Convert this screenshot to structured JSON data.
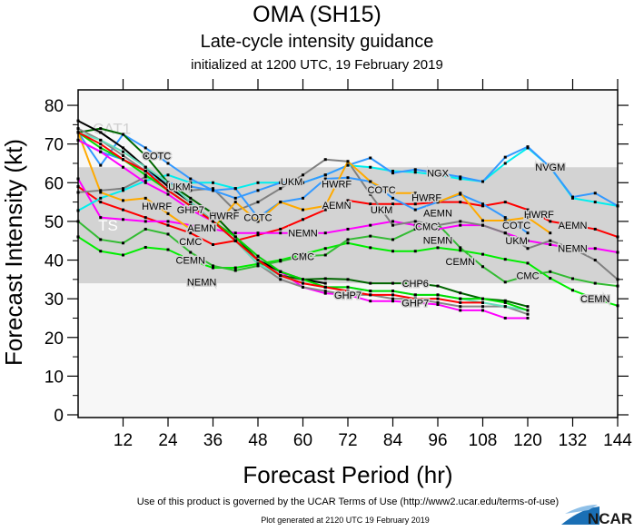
{
  "chart_data": {
    "type": "line",
    "title": "OMA (SH15)",
    "subtitle": "Late-cycle intensity guidance",
    "subtitle2": "initialized at 1200 UTC, 19 February 2019",
    "xlabel": "Forecast Period (hr)",
    "ylabel": "Forecast Intensity (kt)",
    "xlim": [
      0,
      144
    ],
    "ylim": [
      0,
      84
    ],
    "x_ticks": [
      "12",
      "24",
      "36",
      "48",
      "60",
      "72",
      "84",
      "96",
      "108",
      "120",
      "132",
      "144"
    ],
    "y_ticks": [
      "0",
      "10",
      "20",
      "30",
      "40",
      "50",
      "60",
      "70",
      "80"
    ],
    "x": [
      0,
      6,
      12,
      18,
      24,
      30,
      36,
      42,
      48,
      54,
      60,
      66,
      72,
      78,
      84,
      90,
      96,
      102,
      108,
      114,
      120,
      126,
      132,
      138,
      144
    ],
    "shaded_band": {
      "from": 34,
      "to": 64,
      "color": "#d3d3d3"
    },
    "background_color": "#f7f7f7",
    "category_labels": [
      {
        "text": "CAT1",
        "x": 9,
        "y": 74,
        "color": "#cfcfcf"
      },
      {
        "text": "TS",
        "x": 8,
        "y": 49,
        "color": "#ffffff"
      }
    ],
    "series": [
      {
        "name": "CEMN",
        "color": "#00ee00",
        "label_at": [
          30,
          102,
          138
        ],
        "values": [
          46,
          42.3,
          41.3,
          43.3,
          42.7,
          40,
          38,
          38,
          39,
          40,
          41.5,
          43,
          44.4,
          43.2,
          42.3,
          42.3,
          43.2,
          42.5,
          41.5,
          40.2,
          39.2,
          35.3,
          32.2,
          30,
          28.2
        ]
      },
      {
        "name": "CMC",
        "color": "#33bb33",
        "label_at": [
          30,
          60,
          93,
          120
        ],
        "values": [
          50,
          45.3,
          44.4,
          48,
          46.7,
          42,
          38.5,
          37.3,
          38.5,
          39.7,
          41,
          41.3,
          45.3,
          46.2,
          45.3,
          48,
          49.3,
          43.2,
          38.3,
          34.3,
          36,
          37,
          35.2,
          34,
          33.3
        ]
      },
      {
        "name": "AEMN",
        "color": "#ff0000",
        "label_at": [
          33,
          69,
          96,
          132
        ],
        "values": [
          59,
          55,
          53,
          51,
          49,
          47,
          44,
          45,
          46.5,
          48,
          50.5,
          53,
          55.4,
          54.5,
          54.5,
          54.5,
          55,
          55,
          54,
          55,
          53,
          50,
          49,
          48,
          46
        ]
      },
      {
        "name": "NEMN",
        "color": "#ff00ff",
        "label_at": [
          33,
          60,
          96,
          132
        ],
        "values": [
          61,
          51,
          50.5,
          50,
          50,
          49,
          48,
          47,
          47,
          47,
          47,
          47,
          48,
          49,
          50,
          49,
          48,
          49,
          49,
          47,
          45,
          44,
          43,
          43,
          42
        ]
      },
      {
        "name": "UKM",
        "color": "#808080",
        "label_at": [
          27,
          57,
          81,
          117
        ],
        "values": [
          57.5,
          58,
          58.5,
          61.5,
          60,
          58,
          58.5,
          52.7,
          55,
          58.5,
          62,
          66,
          65.5,
          57,
          49,
          50,
          49,
          50,
          49,
          47,
          43,
          45,
          43,
          40,
          35
        ]
      },
      {
        "name": "NVGM",
        "color": "#00eeee",
        "label_at": [
          126
        ],
        "values": [
          52.8,
          56,
          58,
          60.5,
          62,
          60,
          60,
          58.5,
          60,
          60,
          60,
          62,
          64.5,
          64,
          63,
          62.7,
          62,
          61,
          60.3,
          65,
          69,
          64,
          56,
          55,
          54
        ]
      },
      {
        "name": "NGX",
        "color": "#3399ff",
        "label_at": [
          96
        ],
        "values": [
          71,
          68,
          66,
          63,
          60,
          59,
          58,
          56,
          58,
          60,
          60,
          62,
          64.5,
          66.4,
          62.5,
          63.4,
          62.5,
          61.5,
          60.3,
          66.6,
          69.3,
          64,
          56.3,
          57.3,
          54
        ]
      },
      {
        "name": "COTC",
        "color": "#3399ff",
        "label_at": [
          21,
          48,
          81,
          117
        ],
        "values": [
          73,
          64.5,
          72.5,
          69,
          65,
          61,
          58,
          58.5,
          51,
          55,
          56,
          61,
          61.3,
          60.3,
          56,
          53,
          55,
          57,
          54.5,
          51,
          47,
          null,
          null,
          null,
          null
        ]
      },
      {
        "name": "HWRF",
        "color": "#ffaa00",
        "label_at": [
          21,
          39,
          69,
          93,
          123
        ],
        "values": [
          73,
          57.5,
          55.4,
          56,
          52,
          48,
          48,
          55,
          50,
          55,
          53,
          54,
          65.5,
          60.3,
          57.3,
          57.3,
          55,
          57.3,
          50.2,
          50.2,
          51,
          47,
          null,
          null,
          null
        ]
      },
      {
        "name": "GHP7",
        "color": "#ff00ff",
        "label_at": [
          30,
          72,
          90
        ],
        "values": [
          71,
          68,
          64,
          60,
          57,
          53,
          50,
          46,
          41,
          37,
          33,
          31.4,
          31,
          29.4,
          29.4,
          29,
          28.5,
          27,
          27,
          25,
          25,
          null,
          null,
          null,
          null
        ]
      },
      {
        "name": "CHP6",
        "color": "#006600",
        "label_at": [
          90
        ],
        "values": [
          73,
          74,
          72.5,
          67,
          60,
          56,
          52,
          46,
          40,
          36,
          35,
          35.2,
          35,
          34,
          34,
          34,
          33.3,
          31.5,
          30,
          29.5,
          28,
          null,
          null,
          null,
          null
        ]
      },
      {
        "color": "#000000",
        "label_at": [],
        "values": [
          76,
          73,
          69,
          64,
          59,
          55,
          50,
          45,
          40,
          37,
          35,
          34,
          null,
          null,
          null,
          null,
          null,
          null,
          null,
          null,
          null,
          null,
          null,
          null,
          null
        ]
      },
      {
        "color": "#888888",
        "label_at": [],
        "values": [
          74,
          71,
          67,
          63,
          58,
          54,
          50,
          45,
          39,
          35,
          33,
          32,
          31,
          31,
          30,
          30,
          29,
          28,
          28,
          28,
          26,
          null,
          null,
          null,
          null
        ]
      },
      {
        "color": "#66ddbb",
        "label_at": [],
        "values": [
          73,
          71,
          68,
          64,
          60,
          55,
          50,
          45,
          39,
          36,
          34,
          33,
          33,
          32,
          32,
          31,
          31,
          30,
          29,
          28,
          27,
          null,
          null,
          null,
          null
        ]
      },
      {
        "color": "#00dd00",
        "label_at": [],
        "values": [
          73,
          69,
          66,
          62,
          58,
          54,
          50,
          46,
          41,
          37,
          35,
          33,
          33,
          32,
          32,
          31,
          31,
          30,
          30,
          29,
          27,
          null,
          null,
          null,
          null
        ]
      },
      {
        "color": "#ff0000",
        "label_at": [],
        "values": [
          73,
          70,
          66,
          63,
          58,
          54,
          50,
          45,
          40,
          36,
          34,
          33,
          32,
          31,
          31,
          30,
          30,
          29,
          29,
          null,
          null,
          null,
          null,
          null,
          null
        ]
      }
    ]
  },
  "footer": {
    "terms": "Use of this product is governed by the UCAR Terms of Use (http://www2.ucar.edu/terms-of-use)",
    "generated": "Plot generated at 2120 UTC   19 February 2019",
    "logo_text": "NCAR"
  }
}
